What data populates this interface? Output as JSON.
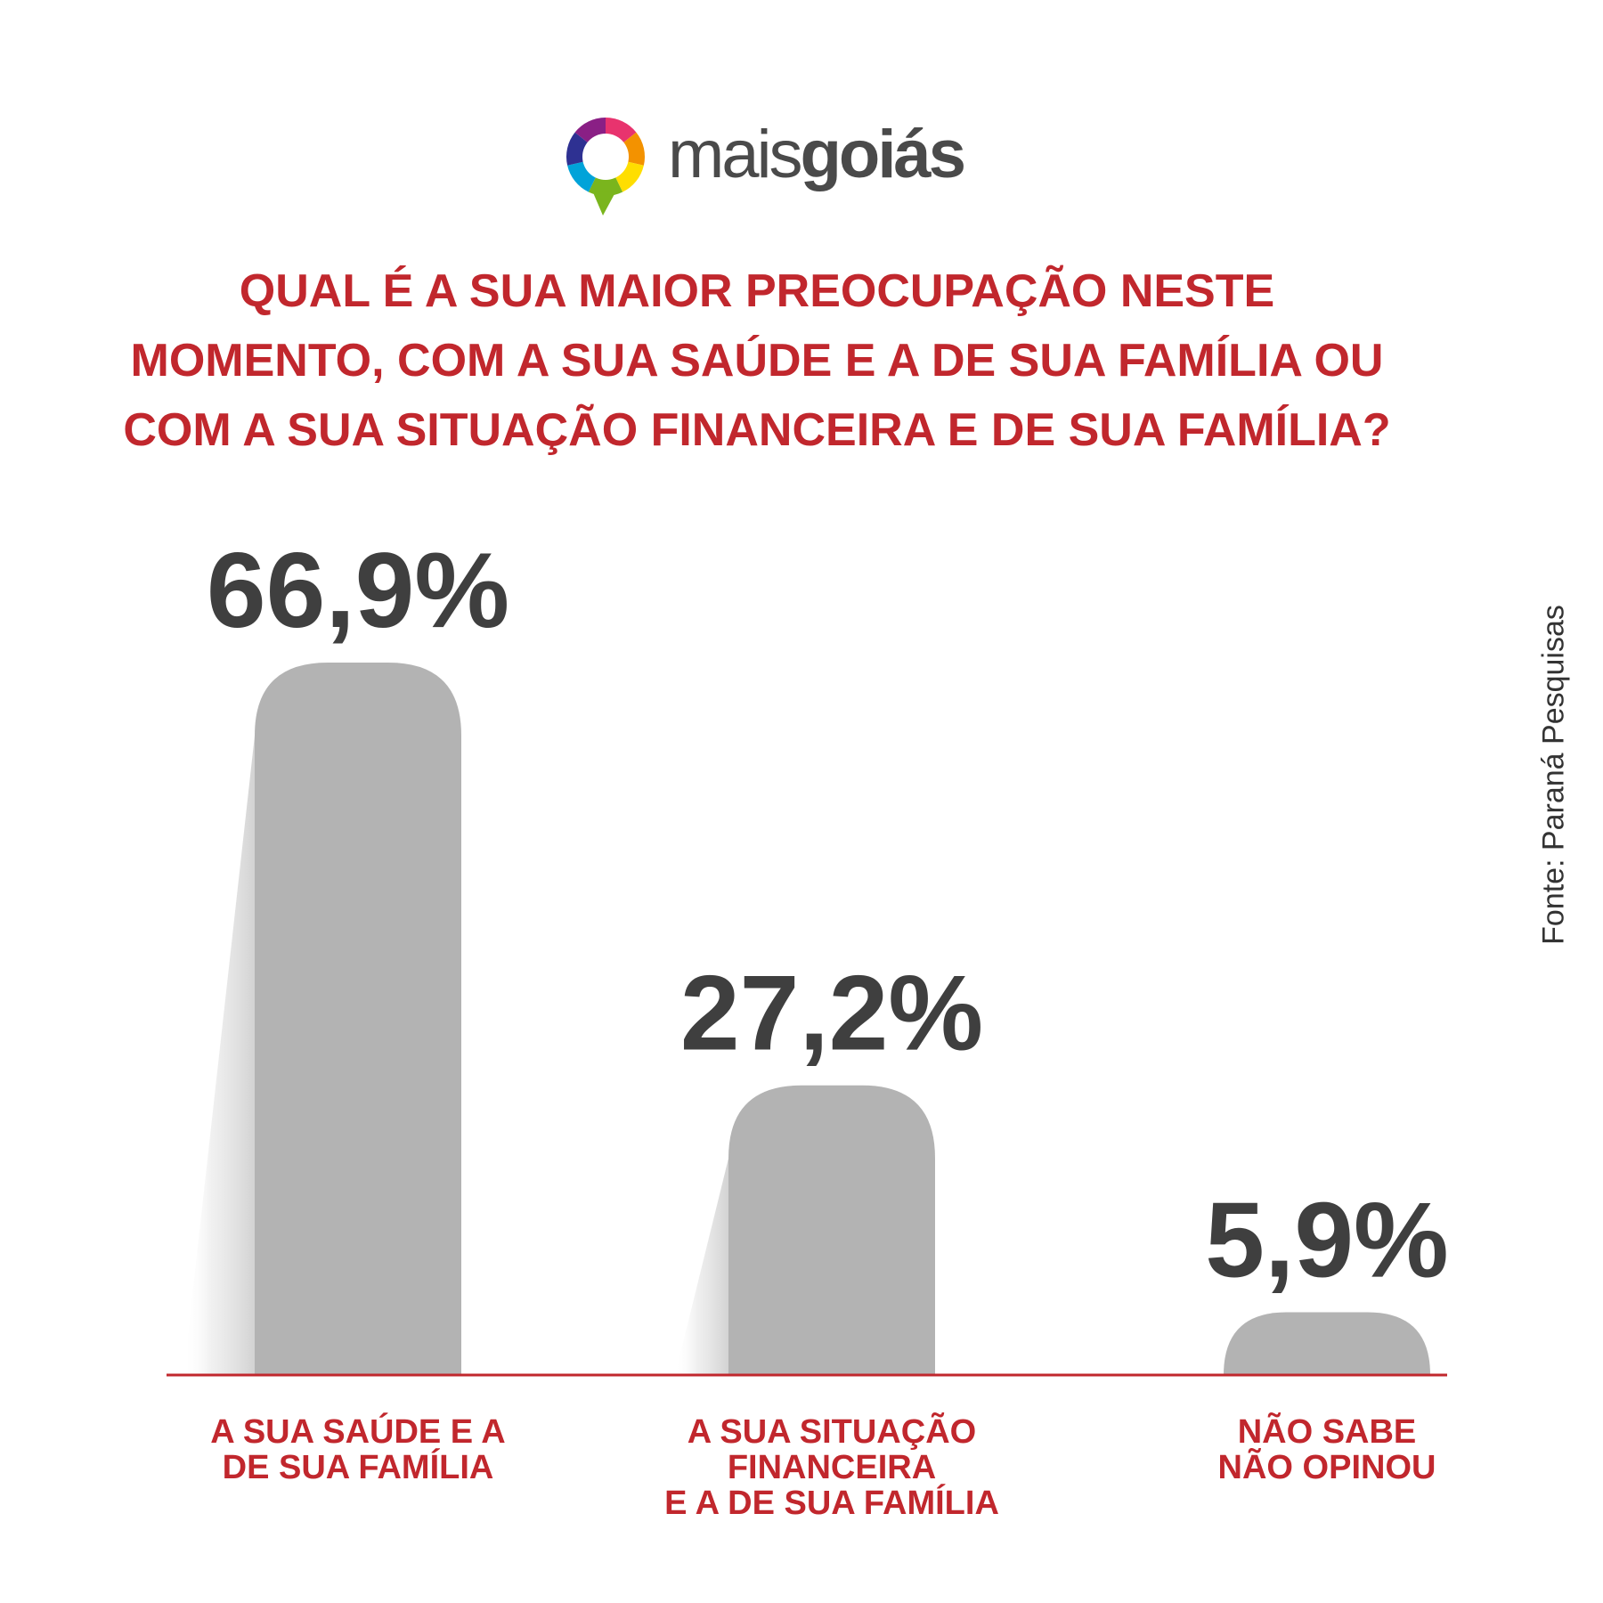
{
  "logo": {
    "text_light": "mais",
    "text_bold": "goiás",
    "icon": "speech-bubble-ring-icon",
    "ring_colors": [
      "#e8336e",
      "#f39200",
      "#ffde00",
      "#7ab51d",
      "#00a3d9",
      "#2e3192",
      "#8a1f85"
    ]
  },
  "question": {
    "line1": "QUAL É A SUA MAIOR PREOCUPAÇÃO NESTE",
    "line2_bold": "MOMENTO",
    "line2_rest": ", COM A SUA SAÚDE E A DE SUA FAMÍLIA OU",
    "line3": "COM A SUA SITUAÇÃO FINANCEIRA E DE SUA FAMÍLIA?"
  },
  "source": "Fonte: Paraná Pesquisas",
  "colors": {
    "accent": "#c1272d",
    "bar": "#b3b3b3",
    "value_text": "#3f3f3f",
    "axis": "#c1272d"
  },
  "chart_data": {
    "type": "bar",
    "categories": [
      [
        "A SUA SAÚDE E A",
        "DE SUA FAMÍLIA"
      ],
      [
        "A SUA SITUAÇÃO",
        "FINANCEIRA",
        "E A DE SUA FAMÍLIA"
      ],
      [
        "NÃO SABE",
        "NÃO OPINOU"
      ]
    ],
    "values": [
      66.9,
      27.2,
      5.9
    ],
    "value_labels": [
      "66,9%",
      "27,2%",
      "5,9%"
    ],
    "title": "QUAL É A SUA MAIOR PREOCUPAÇÃO NESTE MOMENTO, COM A SUA SAÚDE E A DE SUA FAMÍLIA OU COM A SUA SITUAÇÃO FINANCEIRA E DE SUA FAMÍLIA?",
    "xlabel": "",
    "ylabel": "",
    "ylim": [
      0,
      66.9
    ],
    "grid": false,
    "legend": "none"
  }
}
